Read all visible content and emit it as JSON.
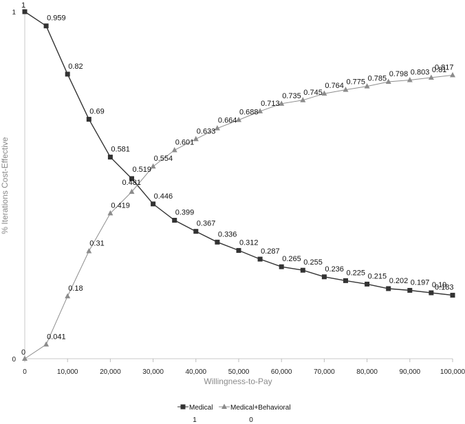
{
  "chart_data": {
    "type": "line",
    "xlabel": "Willingness-to-Pay",
    "ylabel": "% Iterations Cost-Effective",
    "xlim": [
      0,
      100000
    ],
    "ylim": [
      0,
      1
    ],
    "x": [
      0,
      5000,
      10000,
      15000,
      20000,
      25000,
      30000,
      35000,
      40000,
      45000,
      50000,
      55000,
      60000,
      65000,
      70000,
      75000,
      80000,
      85000,
      90000,
      95000,
      100000
    ],
    "x_tick_labels": [
      "0",
      "10,000",
      "20,000",
      "30,000",
      "40,000",
      "50,000",
      "60,000",
      "70,000",
      "80,000",
      "90,000",
      "100,000"
    ],
    "y_tick_labels": [
      "0",
      "1"
    ],
    "grid": false,
    "legend_position": "bottom",
    "series": [
      {
        "name": "Medical",
        "marker": "square",
        "color": "#333333",
        "legend_value": "1",
        "values": [
          1,
          0.959,
          0.82,
          0.69,
          0.581,
          0.519,
          0.446,
          0.399,
          0.367,
          0.336,
          0.312,
          0.287,
          0.265,
          0.255,
          0.236,
          0.225,
          0.215,
          0.202,
          0.197,
          0.19,
          0.183
        ],
        "labels": [
          "1",
          "0.959",
          "0.82",
          "0.69",
          "0.581",
          "0.519",
          "0.446",
          "0.399",
          "0.367",
          "0.336",
          "0.312",
          "0.287",
          "0.265",
          "0.255",
          "0.236",
          "0.225",
          "0.215",
          "0.202",
          "0.197",
          "0.19",
          "0.183"
        ]
      },
      {
        "name": "Medical+Behavioral",
        "marker": "triangle",
        "color": "#8c8c8c",
        "legend_value": "0",
        "values": [
          0,
          0.041,
          0.18,
          0.31,
          0.419,
          0.481,
          0.554,
          0.601,
          0.633,
          0.664,
          0.688,
          0.713,
          0.735,
          0.745,
          0.764,
          0.775,
          0.785,
          0.798,
          0.803,
          0.81,
          0.817
        ],
        "labels": [
          "0",
          "0.041",
          "0.18",
          "0.31",
          "0.419",
          "0.481",
          "0.554",
          "0.601",
          "0.633",
          "0.664",
          "0.688",
          "0.713",
          "0.735",
          "0.745",
          "0.764",
          "0.775",
          "0.785",
          "0.798",
          "0.803",
          "0.81",
          "0.817"
        ]
      }
    ]
  }
}
